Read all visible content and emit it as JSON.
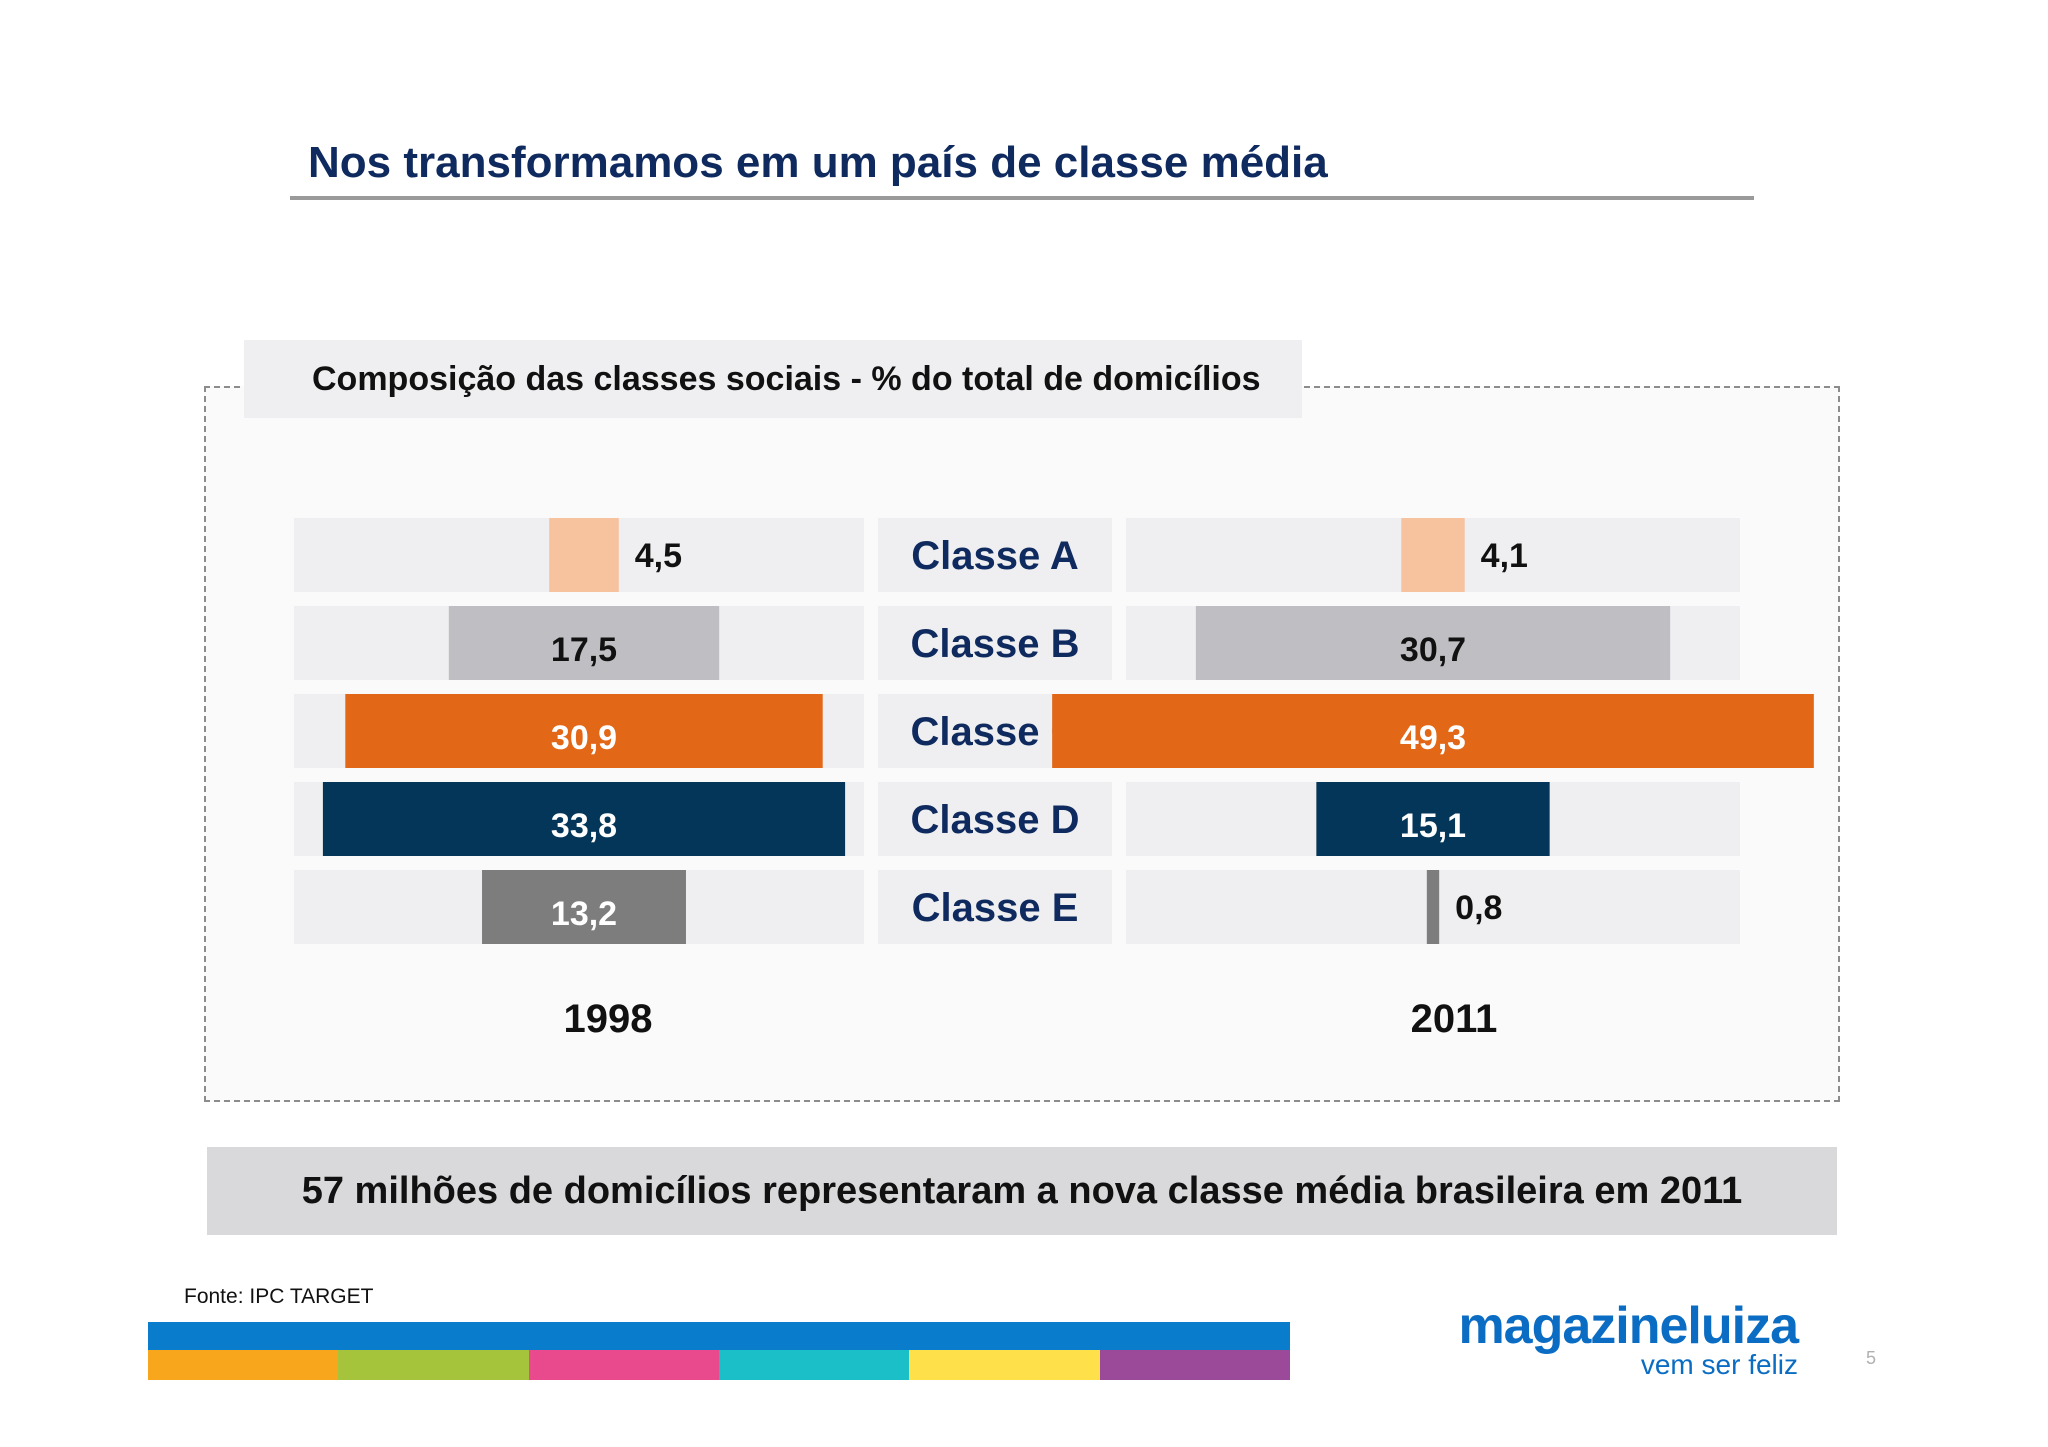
{
  "slide": {
    "title": "Nos transformamos em um país de classe média",
    "callout": "57 milhões de domicílios representaram a nova classe média brasileira em 2011",
    "source": "Fonte: IPC TARGET",
    "page_number": "5"
  },
  "brand": {
    "logo_name": "magazineluiza",
    "tagline": "vem ser feliz",
    "logo_color": "#0a6cc2",
    "stripe_top": "#0a7ccc",
    "stripe_colors": [
      "#f8a61c",
      "#a6c43b",
      "#e94a8e",
      "#1bbfc8",
      "#fde04a",
      "#9b4a9a"
    ]
  },
  "chart_data": {
    "type": "bar",
    "title": "Composição das classes sociais  - % do total de domicílios",
    "categories": [
      "Classe A",
      "Classe B",
      "Classe C",
      "Classe D",
      "Classe E"
    ],
    "category_colors": [
      "#f7c29e",
      "#bfbfc3",
      "#e26716",
      "#033658",
      "#7d7d7d"
    ],
    "series": [
      {
        "name": "1998",
        "values": [
          4.5,
          17.5,
          30.9,
          33.8,
          13.2
        ],
        "labels": [
          "4,5",
          "17,5",
          "30,9",
          "33,8",
          "13,2"
        ]
      },
      {
        "name": "2011",
        "values": [
          4.1,
          30.7,
          49.3,
          15.1,
          0.8
        ],
        "labels": [
          "4,1",
          "30,7",
          "49,3",
          "15,1",
          "0,8"
        ]
      }
    ],
    "label_colors": [
      "#111111",
      "#111111",
      "#ffffff",
      "#ffffff",
      "#ffffff"
    ],
    "category_label_color": "#0f2a5e",
    "track_color": "#efeff1",
    "grid": false,
    "legend": "none"
  }
}
